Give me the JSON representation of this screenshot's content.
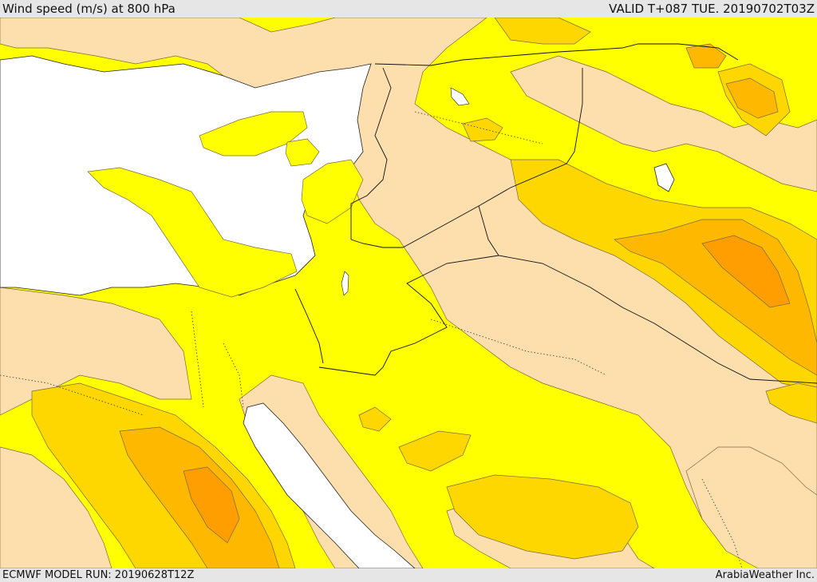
{
  "header": {
    "title": "Wind speed (m/s) at 800 hPa",
    "valid": "VALID T+087 TUE. 20190702T03Z"
  },
  "footer": {
    "model_run": "ECMWF MODEL RUN: 20190628T12Z",
    "credit": "ArabiaWeather Inc."
  },
  "colors": {
    "sea": "#ffffff",
    "calm": "#fddfae",
    "light": "#ffff00",
    "moderate": "#ffd700",
    "strong": "#ffb800",
    "stronger": "#ff9e00"
  }
}
